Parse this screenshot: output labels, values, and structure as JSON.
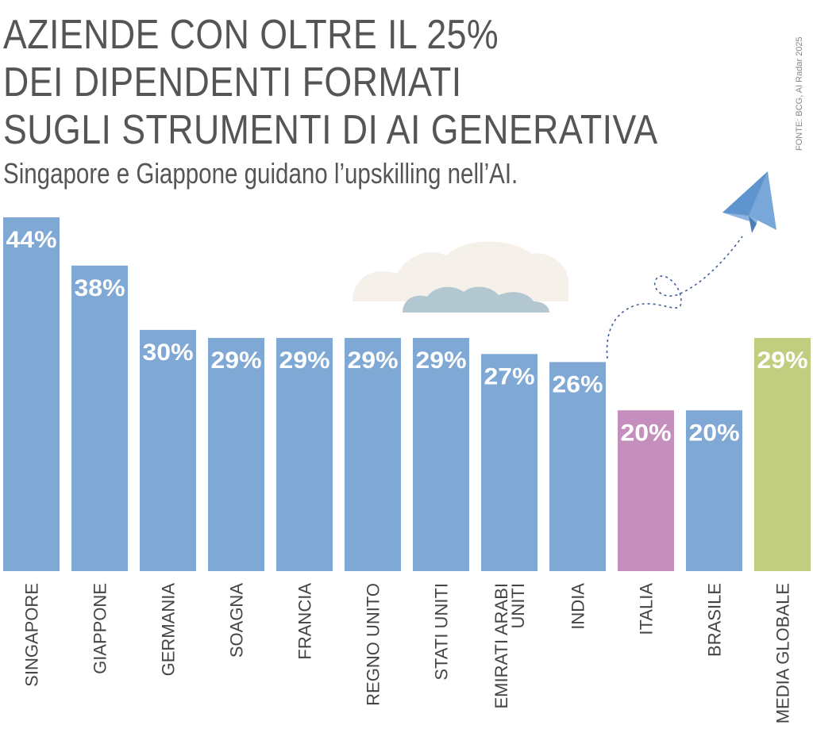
{
  "header": {
    "title_lines": [
      "AZIENDE CON OLTRE IL 25%",
      "DEI DIPENDENTI FORMATI",
      "SUGLI STRUMENTI DI AI GENERATIVA"
    ],
    "subtitle": "Singapore e Giappone guidano l’upskilling nell’AI.",
    "source": "FONTE: BCG, AI Radar 2025"
  },
  "chart_data": {
    "type": "bar",
    "title": "AZIENDE CON OLTRE IL 25% DEI DIPENDENTI FORMATI SUGLI STRUMENTI DI AI GENERATIVA",
    "subtitle": "Singapore e Giappone guidano l’upskilling nell’AI.",
    "categories": [
      [
        "SINGAPORE"
      ],
      [
        "GIAPPONE"
      ],
      [
        "GERMANIA"
      ],
      [
        "SOAGNA"
      ],
      [
        "FRANCIA"
      ],
      [
        "REGNO UNITO"
      ],
      [
        "STATI UNITI"
      ],
      [
        "EMIRATI ARABI",
        "UNITI"
      ],
      [
        "INDIA"
      ],
      [
        "ITALIA"
      ],
      [
        "BRASILE"
      ],
      [
        "MEDIA GLOBALE"
      ]
    ],
    "values": [
      44,
      38,
      30,
      29,
      29,
      29,
      29,
      27,
      26,
      20,
      20,
      29
    ],
    "value_labels": [
      "44%",
      "38%",
      "30%",
      "29%",
      "29%",
      "29%",
      "29%",
      "27%",
      "26%",
      "20%",
      "20%",
      "29%"
    ],
    "unit": "%",
    "bar_colors": [
      "#7fa8d4",
      "#7fa8d4",
      "#7fa8d4",
      "#7fa8d4",
      "#7fa8d4",
      "#7fa8d4",
      "#7fa8d4",
      "#7fa8d4",
      "#7fa8d4",
      "#c58fbd",
      "#7fa8d4",
      "#c1cd7f"
    ],
    "ylim": [
      0,
      44
    ],
    "xlabel": "",
    "ylabel": "",
    "grid": false,
    "legend": "none"
  },
  "colors": {
    "title": "#555555",
    "default_bar": "#7fa8d4",
    "highlight_italy": "#c58fbd",
    "highlight_global": "#c1cd7f",
    "cloud_back": "#f6f0ea",
    "cloud_front": "#b3c7d0",
    "plane": "#5e95cf"
  },
  "decorations": {
    "icons": [
      "paper-plane-icon",
      "cloud-icon"
    ]
  }
}
